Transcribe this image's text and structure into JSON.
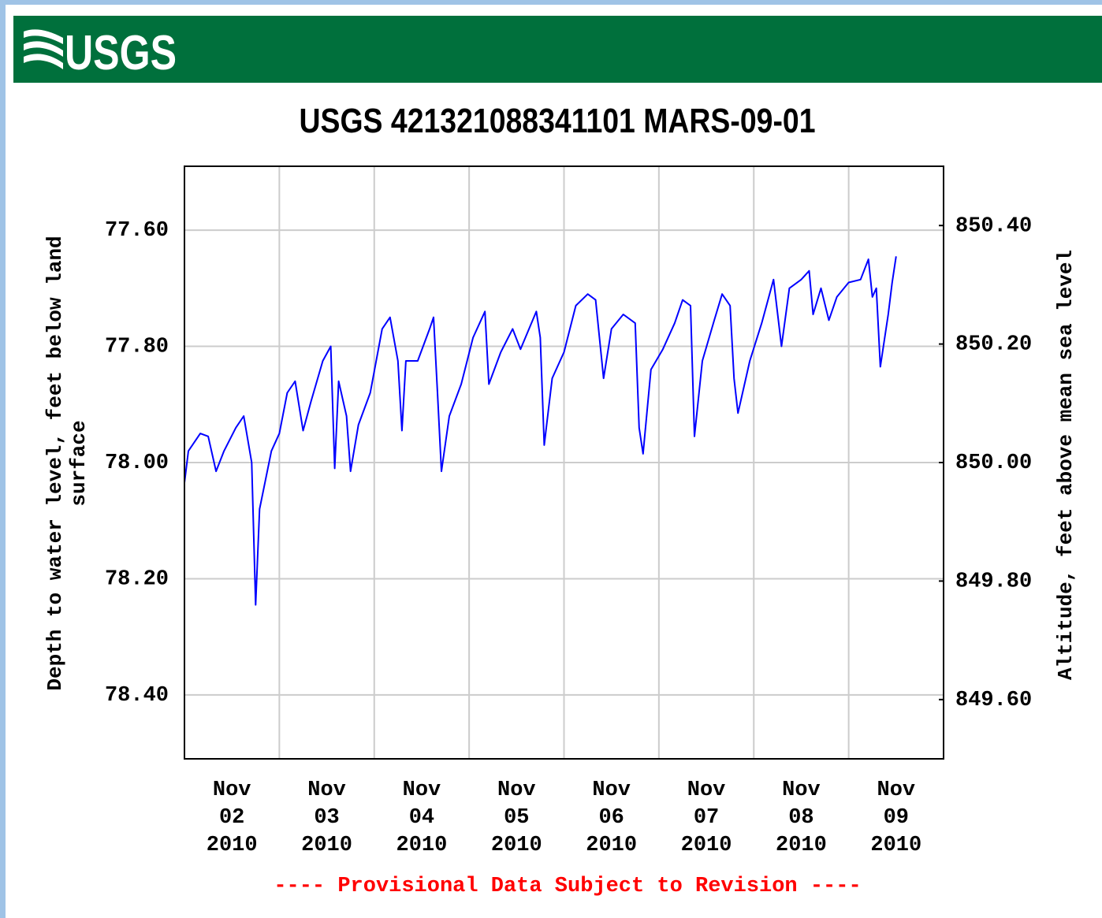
{
  "logo": "USGS",
  "chart_data": {
    "type": "line",
    "title": "USGS 421321088341101 MARS-09-01",
    "ylabel": "Depth to water level, feet below land surface",
    "y2label": "Altitude, feet above mean sea level",
    "note": "---- Provisional Data Subject to Revision ----",
    "xlim": [
      "2010-11-02T00:00",
      "2010-11-10T00:00"
    ],
    "xticks": [
      {
        "value": "2010-11-02T00:00",
        "label": "Nov 02 2010"
      },
      {
        "value": "2010-11-03T00:00",
        "label": "Nov 03 2010"
      },
      {
        "value": "2010-11-04T00:00",
        "label": "Nov 04 2010"
      },
      {
        "value": "2010-11-05T00:00",
        "label": "Nov 05 2010"
      },
      {
        "value": "2010-11-06T00:00",
        "label": "Nov 06 2010"
      },
      {
        "value": "2010-11-07T00:00",
        "label": "Nov 07 2010"
      },
      {
        "value": "2010-11-08T00:00",
        "label": "Nov 08 2010"
      },
      {
        "value": "2010-11-09T00:00",
        "label": "Nov 09 2010"
      }
    ],
    "ylim": [
      78.51,
      77.49
    ],
    "yticks": [
      {
        "value": 77.6,
        "label": "77.60"
      },
      {
        "value": 77.8,
        "label": "77.80"
      },
      {
        "value": 78.0,
        "label": "78.00"
      },
      {
        "value": 78.2,
        "label": "78.20"
      },
      {
        "value": 78.4,
        "label": "78.40"
      }
    ],
    "y2lim": [
      849.5,
      850.5
    ],
    "y2ticks": [
      {
        "value": 850.4,
        "label": "850.40"
      },
      {
        "value": 850.2,
        "label": "850.20"
      },
      {
        "value": 850.0,
        "label": "850.00"
      },
      {
        "value": 849.8,
        "label": "849.80"
      },
      {
        "value": 849.6,
        "label": "849.60"
      }
    ],
    "grid": true,
    "x": [
      "2010-11-02T00:00",
      "2010-11-02T01:00",
      "2010-11-02T04:00",
      "2010-11-02T06:00",
      "2010-11-02T08:00",
      "2010-11-02T10:00",
      "2010-11-02T13:00",
      "2010-11-02T15:00",
      "2010-11-02T17:00",
      "2010-11-02T18:00",
      "2010-11-02T19:00",
      "2010-11-02T22:00",
      "2010-11-03T00:00",
      "2010-11-03T02:00",
      "2010-11-03T04:00",
      "2010-11-03T06:00",
      "2010-11-03T08:00",
      "2010-11-03T11:00",
      "2010-11-03T13:00",
      "2010-11-03T14:00",
      "2010-11-03T15:00",
      "2010-11-03T17:00",
      "2010-11-03T18:00",
      "2010-11-03T20:00",
      "2010-11-03T23:00",
      "2010-11-04T02:00",
      "2010-11-04T04:00",
      "2010-11-04T06:00",
      "2010-11-04T07:00",
      "2010-11-04T08:00",
      "2010-11-04T11:00",
      "2010-11-04T14:00",
      "2010-11-04T15:00",
      "2010-11-04T16:00",
      "2010-11-04T17:00",
      "2010-11-04T19:00",
      "2010-11-04T22:00",
      "2010-11-05T01:00",
      "2010-11-05T04:00",
      "2010-11-05T05:00",
      "2010-11-05T08:00",
      "2010-11-05T11:00",
      "2010-11-05T13:00",
      "2010-11-05T17:00",
      "2010-11-05T18:00",
      "2010-11-05T19:00",
      "2010-11-05T21:00",
      "2010-11-06T00:00",
      "2010-11-06T03:00",
      "2010-11-06T06:00",
      "2010-11-06T08:00",
      "2010-11-06T10:00",
      "2010-11-06T12:00",
      "2010-11-06T15:00",
      "2010-11-06T18:00",
      "2010-11-06T19:00",
      "2010-11-06T20:00",
      "2010-11-06T22:00",
      "2010-11-07T01:00",
      "2010-11-07T04:00",
      "2010-11-07T06:00",
      "2010-11-07T08:00",
      "2010-11-07T09:00",
      "2010-11-07T11:00",
      "2010-11-07T14:00",
      "2010-11-07T16:00",
      "2010-11-07T18:00",
      "2010-11-07T19:00",
      "2010-11-07T20:00",
      "2010-11-07T23:00",
      "2010-11-08T02:00",
      "2010-11-08T05:00",
      "2010-11-08T07:00",
      "2010-11-08T09:00",
      "2010-11-08T12:00",
      "2010-11-08T14:00",
      "2010-11-08T15:00",
      "2010-11-08T17:00",
      "2010-11-08T19:00",
      "2010-11-08T21:00",
      "2010-11-09T00:00",
      "2010-11-09T03:00",
      "2010-11-09T05:00",
      "2010-11-09T06:00",
      "2010-11-09T07:00",
      "2010-11-09T08:00",
      "2010-11-09T10:00",
      "2010-11-09T11:00",
      "2010-11-09T12:00"
    ],
    "series": [
      {
        "color": "#0000ff",
        "values": [
          78.035,
          77.98,
          77.95,
          77.955,
          78.015,
          77.98,
          77.94,
          77.92,
          78.0,
          78.245,
          78.08,
          77.98,
          77.95,
          77.88,
          77.86,
          77.945,
          77.895,
          77.825,
          77.8,
          78.01,
          77.86,
          77.92,
          78.015,
          77.935,
          77.88,
          77.77,
          77.75,
          77.825,
          77.945,
          77.825,
          77.825,
          77.77,
          77.75,
          77.88,
          78.015,
          77.92,
          77.865,
          77.785,
          77.74,
          77.865,
          77.81,
          77.77,
          77.805,
          77.74,
          77.785,
          77.97,
          77.855,
          77.81,
          77.73,
          77.71,
          77.72,
          77.855,
          77.77,
          77.745,
          77.76,
          77.94,
          77.985,
          77.84,
          77.805,
          77.76,
          77.72,
          77.73,
          77.955,
          77.825,
          77.755,
          77.71,
          77.73,
          77.855,
          77.915,
          77.825,
          77.76,
          77.685,
          77.8,
          77.7,
          77.685,
          77.67,
          77.745,
          77.7,
          77.755,
          77.715,
          77.69,
          77.685,
          77.65,
          77.715,
          77.7,
          77.835,
          77.745,
          77.69,
          77.645
        ]
      }
    ]
  }
}
